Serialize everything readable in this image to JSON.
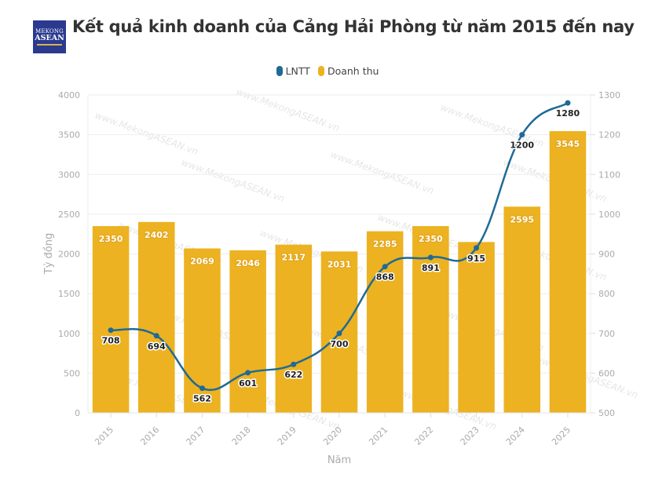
{
  "logo": {
    "line1": "MEKONG",
    "line2": "ASEAN"
  },
  "title": "Kết quả kinh doanh của Cảng Hải Phòng từ năm 2015 đến nay",
  "watermark": "www.MekongASEAN.vn",
  "colors": {
    "lntt": "#1f6a96",
    "revenue": "#ecb221",
    "grid": "#eeeeee"
  },
  "chart_data": {
    "type": "bar",
    "title": "Kết quả kinh doanh của Cảng Hải Phòng từ năm 2015 đến nay",
    "xlabel": "Năm",
    "ylabel": "Tỷ đồng",
    "categories": [
      "2015",
      "2016",
      "2017",
      "2018",
      "2019",
      "2020",
      "2021",
      "2022",
      "2023",
      "2024",
      "2025"
    ],
    "legend": [
      "LNTT",
      "Doanh thu"
    ],
    "legend_position": "top-center",
    "grid": true,
    "y_left": {
      "range": [
        0,
        4000
      ],
      "ticks": [
        0,
        500,
        1000,
        1500,
        2000,
        2500,
        3000,
        3500,
        4000
      ]
    },
    "y_right": {
      "range": [
        500,
        1300
      ],
      "ticks": [
        500,
        600,
        700,
        800,
        900,
        1000,
        1100,
        1200,
        1300
      ]
    },
    "series": [
      {
        "name": "Doanh thu",
        "type": "bar",
        "axis": "left",
        "values": [
          2350,
          2402,
          2069,
          2046,
          2117,
          2031,
          2285,
          2350,
          2150,
          2595,
          3545
        ],
        "labels": [
          "2350",
          "2402",
          "2069",
          "2046",
          "2117",
          "2031",
          "2285",
          "2350",
          "",
          "2595",
          "3545"
        ]
      },
      {
        "name": "LNTT",
        "type": "line",
        "axis": "right",
        "values": [
          708,
          694,
          562,
          601,
          622,
          700,
          868,
          891,
          915,
          1200,
          1280
        ],
        "labels": [
          "708",
          "694",
          "562",
          "601",
          "622",
          "700",
          "868",
          "891",
          "915",
          "1200",
          "1280"
        ]
      }
    ]
  }
}
